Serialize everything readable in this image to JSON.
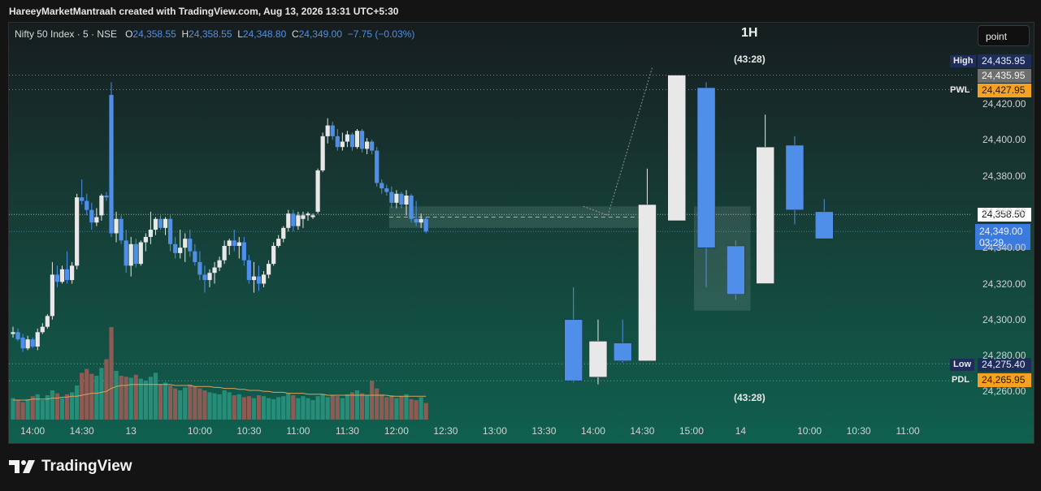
{
  "header": {
    "credit": "HareeyMarketMantraah created with TradingView.com, Aug 13, 2026 13:31 UTC+5:30"
  },
  "legend": {
    "symbol": "Nifty 50 Index · 5 · NSE",
    "o_label": "O",
    "o_value": "24,358.55",
    "h_label": "H",
    "h_value": "24,358.55",
    "l_label": "L",
    "l_value": "24,348.80",
    "c_label": "C",
    "c_value": "24,349.00",
    "change": "−7.75 (−0.03%)"
  },
  "toolbar": {
    "point_button": "point"
  },
  "overlay": {
    "timeframe_label": "1H",
    "countdown_top": "(43:28)",
    "countdown_bottom": "(43:28)"
  },
  "price_tags": {
    "high_label": "High",
    "high_value": "24,435.95",
    "gray_value": "24,435.95",
    "pwl_label": "PWL",
    "pwl_value": "24,427.95",
    "current_value": "24,358.50",
    "last_value": "24,349.00",
    "last_countdown": "03:29",
    "low_label": "Low",
    "low_value": "24,275.40",
    "pdl_label": "PDL",
    "pdl_value": "24,265.95"
  },
  "brand": {
    "name": "TradingView"
  },
  "colors": {
    "up": "#e8e8e8",
    "down": "#4f8fea",
    "vol_up": "#278d79",
    "vol_down": "#8d5b54",
    "vol_ma": "#d9a45c",
    "high_tag": "#1e2d5a",
    "level_tag": "#f7a122"
  },
  "chart_data": {
    "type": "candlestick",
    "symbol": "Nifty 50 Index",
    "interval": "5",
    "exchange": "NSE",
    "y_ticks": [
      24260,
      24280,
      24300,
      24320,
      24340,
      24360,
      24380,
      24400,
      24420
    ],
    "y_tick_labels": [
      "24,260.00",
      "24,280.00",
      "24,300.00",
      "24,320.00",
      "24,340.00",
      "24,360.00",
      "24,380.00",
      "24,400.00",
      "24,420.00"
    ],
    "ylim": [
      24250,
      24460
    ],
    "x_ticks": [
      {
        "slot": 4,
        "label": "14:00"
      },
      {
        "slot": 14,
        "label": "14:30"
      },
      {
        "slot": 24,
        "label": "13"
      },
      {
        "slot": 38,
        "label": "10:00"
      },
      {
        "slot": 48,
        "label": "10:30"
      },
      {
        "slot": 58,
        "label": "11:00"
      },
      {
        "slot": 68,
        "label": "11:30"
      },
      {
        "slot": 78,
        "label": "12:00"
      },
      {
        "slot": 88,
        "label": "12:30"
      },
      {
        "slot": 98,
        "label": "13:00"
      },
      {
        "slot": 108,
        "label": "13:30"
      },
      {
        "slot": 118,
        "label": "14:00"
      },
      {
        "slot": 128,
        "label": "14:30"
      },
      {
        "slot": 138,
        "label": "15:00"
      },
      {
        "slot": 148,
        "label": "14"
      },
      {
        "slot": 162,
        "label": "10:00"
      },
      {
        "slot": 172,
        "label": "10:30"
      },
      {
        "slot": 182,
        "label": "11:00"
      }
    ],
    "candles_5m": [
      [
        24292,
        24296,
        24290,
        24293
      ],
      [
        24293,
        24295,
        24288,
        24289
      ],
      [
        24290,
        24292,
        24282,
        24284
      ],
      [
        24284,
        24291,
        24283,
        24289
      ],
      [
        24289,
        24290,
        24284,
        24285
      ],
      [
        24285,
        24295,
        24283,
        24293
      ],
      [
        24293,
        24298,
        24292,
        24296
      ],
      [
        24296,
        24303,
        24295,
        24302
      ],
      [
        24302,
        24332,
        24300,
        24325
      ],
      [
        24325,
        24330,
        24318,
        24321
      ],
      [
        24321,
        24330,
        24320,
        24328
      ],
      [
        24328,
        24338,
        24320,
        24322
      ],
      [
        24322,
        24332,
        24320,
        24330
      ],
      [
        24330,
        24370,
        24328,
        24368
      ],
      [
        24368,
        24378,
        24364,
        24366
      ],
      [
        24366,
        24370,
        24358,
        24361
      ],
      [
        24361,
        24365,
        24350,
        24354
      ],
      [
        24354,
        24362,
        24352,
        24357
      ],
      [
        24358,
        24370,
        24355,
        24369
      ],
      [
        24369,
        24371,
        24366,
        24368
      ],
      [
        24425,
        24432,
        24346,
        24348
      ],
      [
        24348,
        24360,
        24343,
        24356
      ],
      [
        24356,
        24358,
        24342,
        24344
      ],
      [
        24344,
        24350,
        24326,
        24330
      ],
      [
        24330,
        24346,
        24324,
        24342
      ],
      [
        24342,
        24345,
        24329,
        24331
      ],
      [
        24331,
        24344,
        24330,
        24343
      ],
      [
        24343,
        24348,
        24338,
        24346
      ],
      [
        24346,
        24360,
        24342,
        24350
      ],
      [
        24350,
        24357,
        24347,
        24356
      ],
      [
        24356,
        24358,
        24350,
        24351
      ],
      [
        24351,
        24357,
        24347,
        24356
      ],
      [
        24356,
        24358,
        24338,
        24342
      ],
      [
        24342,
        24346,
        24334,
        24337
      ],
      [
        24337,
        24350,
        24334,
        24340
      ],
      [
        24340,
        24348,
        24332,
        24345
      ],
      [
        24345,
        24350,
        24335,
        24338
      ],
      [
        24338,
        24342,
        24330,
        24332
      ],
      [
        24332,
        24338,
        24322,
        24325
      ],
      [
        24325,
        24330,
        24315,
        24322
      ],
      [
        24322,
        24328,
        24318,
        24326
      ],
      [
        24326,
        24332,
        24320,
        24329
      ],
      [
        24329,
        24335,
        24327,
        24333
      ],
      [
        24333,
        24344,
        24331,
        24341
      ],
      [
        24341,
        24345,
        24336,
        24344
      ],
      [
        24344,
        24350,
        24338,
        24341
      ],
      [
        24341,
        24346,
        24334,
        24343
      ],
      [
        24343,
        24346,
        24330,
        24333
      ],
      [
        24333,
        24336,
        24320,
        24322
      ],
      [
        24322,
        24332,
        24315,
        24324
      ],
      [
        24324,
        24330,
        24316,
        24320
      ],
      [
        24320,
        24327,
        24318,
        24325
      ],
      [
        24325,
        24333,
        24323,
        24331
      ],
      [
        24331,
        24343,
        24330,
        24341
      ],
      [
        24341,
        24347,
        24340,
        24345
      ],
      [
        24345,
        24352,
        24343,
        24351
      ],
      [
        24351,
        24361,
        24349,
        24359
      ],
      [
        24359,
        24361,
        24349,
        24352
      ],
      [
        24352,
        24360,
        24350,
        24358
      ],
      [
        24356,
        24360,
        24351,
        24358
      ],
      [
        24358,
        24360,
        24355,
        24359
      ],
      [
        24357,
        24359,
        24356,
        24358
      ],
      [
        24360,
        24384,
        24359,
        24383
      ],
      [
        24383,
        24404,
        24382,
        24402
      ],
      [
        24402,
        24412,
        24398,
        24408
      ],
      [
        24408,
        24410,
        24400,
        24402
      ],
      [
        24402,
        24406,
        24394,
        24396
      ],
      [
        24396,
        24404,
        24394,
        24399
      ],
      [
        24399,
        24405,
        24396,
        24403
      ],
      [
        24403,
        24404,
        24394,
        24396
      ],
      [
        24396,
        24406,
        24395,
        24405
      ],
      [
        24405,
        24406,
        24393,
        24395
      ],
      [
        24395,
        24401,
        24392,
        24399
      ],
      [
        24399,
        24400,
        24392,
        24394
      ],
      [
        24394,
        24396,
        24374,
        24376
      ],
      [
        24376,
        24378,
        24370,
        24373
      ],
      [
        24373,
        24375,
        24369,
        24371
      ],
      [
        24371,
        24374,
        24362,
        24365
      ],
      [
        24365,
        24372,
        24362,
        24370
      ],
      [
        24370,
        24371,
        24362,
        24364
      ],
      [
        24364,
        24372,
        24358,
        24369
      ],
      [
        24369,
        24370,
        24354,
        24356
      ],
      [
        24356,
        24366,
        24352,
        24354
      ],
      [
        24354,
        24359,
        24351,
        24356
      ],
      [
        24356,
        24357,
        24348,
        24349
      ]
    ],
    "candles_1h": [
      {
        "slot": 114,
        "o": 24300,
        "h": 24318,
        "l": 24265,
        "c": 24266
      },
      {
        "slot": 119,
        "o": 24268,
        "h": 24300,
        "l": 24264,
        "c": 24288
      },
      {
        "slot": 124,
        "o": 24287,
        "h": 24300,
        "l": 24276,
        "c": 24277
      },
      {
        "slot": 129,
        "o": 24277,
        "h": 24384,
        "l": 24277,
        "c": 24364
      },
      {
        "slot": 135,
        "o": 24355,
        "h": 24436,
        "l": 24355,
        "c": 24436
      },
      {
        "slot": 141,
        "o": 24429,
        "h": 24432,
        "l": 24318,
        "c": 24340
      },
      {
        "slot": 147,
        "o": 24341,
        "h": 24344,
        "l": 24311,
        "c": 24314
      },
      {
        "slot": 153,
        "o": 24320,
        "h": 24414,
        "l": 24320,
        "c": 24396
      },
      {
        "slot": 159,
        "o": 24397,
        "h": 24402,
        "l": 24353,
        "c": 24361
      },
      {
        "slot": 165,
        "o": 24360,
        "h": 24367,
        "l": 24345,
        "c": 24345
      }
    ],
    "volume": [
      22,
      20,
      18,
      21,
      24,
      26,
      20,
      25,
      30,
      27,
      22,
      26,
      28,
      35,
      48,
      52,
      47,
      45,
      53,
      62,
      95,
      50,
      45,
      44,
      43,
      46,
      42,
      40,
      44,
      48,
      36,
      38,
      35,
      32,
      30,
      33,
      36,
      34,
      32,
      30,
      28,
      27,
      26,
      30,
      28,
      25,
      26,
      23,
      24,
      22,
      25,
      24,
      22,
      21,
      23,
      24,
      27,
      25,
      22,
      24,
      22,
      20,
      24,
      26,
      23,
      25,
      24,
      22,
      26,
      28,
      30,
      27,
      25,
      40,
      32,
      26,
      23,
      25,
      22,
      24,
      26,
      21,
      20,
      23,
      17
    ],
    "volume_ma": [
      20,
      20,
      20,
      20,
      21,
      21,
      21,
      21,
      22,
      22,
      23,
      23,
      24,
      24,
      25,
      26,
      27,
      27,
      28,
      29,
      32,
      34,
      35,
      35,
      36,
      36,
      36,
      36,
      36,
      36,
      36,
      36,
      36,
      35,
      35,
      35,
      35,
      34,
      34,
      34,
      34,
      33,
      33,
      32,
      32,
      32,
      31,
      31,
      30,
      30,
      30,
      29,
      29,
      28,
      28,
      28,
      27,
      27,
      27,
      27,
      26,
      26,
      26,
      26,
      25,
      25,
      25,
      25,
      25,
      25,
      25,
      25,
      25,
      25,
      25,
      25,
      25,
      24,
      24,
      24,
      24,
      24,
      24,
      24,
      24
    ],
    "levels": {
      "High": 24435.95,
      "PWL": 24427.95,
      "Low": 24275.4,
      "PDL": 24265.95,
      "current": 24358.5,
      "last": 24349.0
    }
  }
}
